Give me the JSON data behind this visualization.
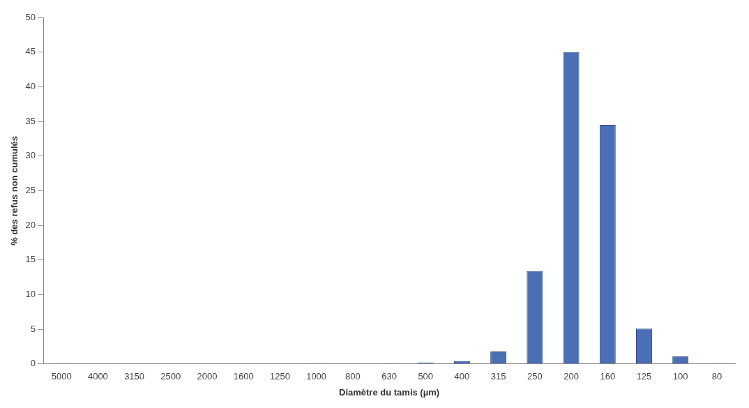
{
  "chart_data": {
    "type": "bar",
    "xlabel": "Diamètre du tamis (µm)",
    "ylabel": "% des refus non cumulés",
    "categories": [
      "5000",
      "4000",
      "3150",
      "2500",
      "2000",
      "1600",
      "1250",
      "1000",
      "800",
      "630",
      "500",
      "400",
      "315",
      "250",
      "200",
      "160",
      "125",
      "100",
      "80"
    ],
    "values": [
      0.1,
      0,
      0,
      0,
      0,
      0,
      0,
      0.1,
      0,
      0.1,
      0.2,
      0.4,
      1.8,
      13.4,
      45,
      34.5,
      5.1,
      1.1,
      0.1
    ],
    "color": "#4a6fb5",
    "ylim": [
      0,
      50
    ],
    "yticks": [
      0,
      5,
      10,
      15,
      20,
      25,
      30,
      35,
      40,
      45,
      50
    ],
    "grid": false,
    "legend": false
  }
}
